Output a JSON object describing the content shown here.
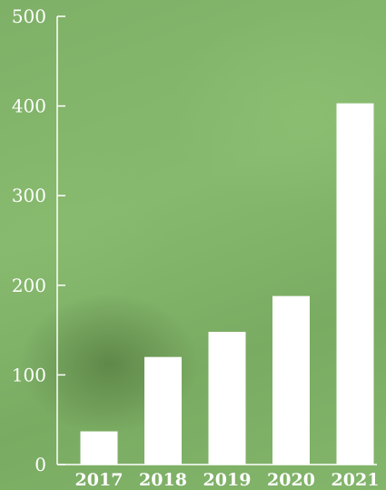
{
  "chart_data": {
    "type": "bar",
    "categories": [
      "2017",
      "2018",
      "2019",
      "2020",
      "2021"
    ],
    "values": [
      37,
      120,
      148,
      188,
      403
    ],
    "ylim": [
      0,
      500
    ],
    "yticks": [
      "0",
      "100",
      "200",
      "300",
      "400",
      "500"
    ],
    "title": "",
    "xlabel": "",
    "ylabel": "",
    "grid": false,
    "bar_color": "#ffffff",
    "axis_color": "#ffffff",
    "background_color": "#83b56b"
  }
}
